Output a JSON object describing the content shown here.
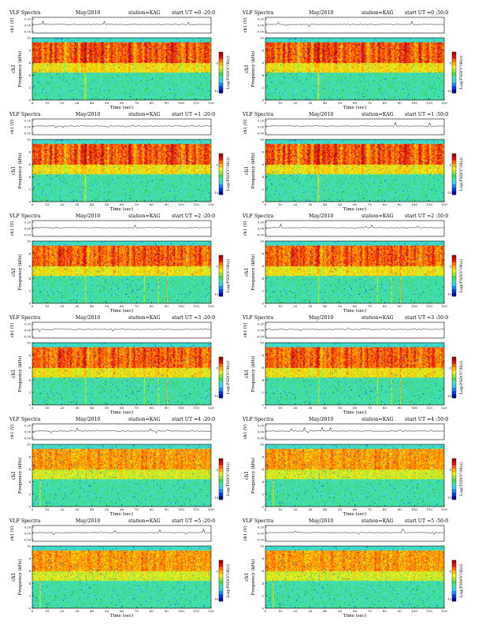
{
  "page": {
    "title": "VLF Spectra",
    "date": "May/2010",
    "station": "station=KAG"
  },
  "colors": {
    "scale": [
      "#08089a",
      "#0a3cd8",
      "#1f8be8",
      "#3ccfe6",
      "#43e0b8",
      "#46d64a",
      "#9be33a",
      "#e9f01e",
      "#ffb400",
      "#ff6a00",
      "#e01010",
      "#a8060a"
    ],
    "background": "#ffffff",
    "axis": "#000000"
  },
  "chart_data": [
    {
      "type": "heatmap",
      "title": "VLF Spectra",
      "date": "May/2010",
      "station": "station=KAG",
      "start_ut": "start  UT =0 :20:0",
      "xlabel": "Time (sec)",
      "ylabel": "Frequency (kHz)",
      "panel_ylabel": "ch1",
      "voltage_label": "ch1 (V)",
      "colorbar_label": "Log(PSD(V²/Hz))",
      "xlim": [
        0,
        120
      ],
      "ylim": [
        0,
        10
      ],
      "xticks": [
        "0",
        "10",
        "20",
        "30",
        "40",
        "50",
        "60",
        "70",
        "80",
        "90",
        "100",
        "110",
        "120"
      ],
      "yticks": [
        "0",
        "2",
        "4",
        "6",
        "8",
        "10"
      ],
      "voltage_ticks": [
        "0.20",
        "0.00",
        "-0.50"
      ],
      "colorbar_ticks": [
        "-5",
        "-10"
      ]
    },
    {
      "type": "heatmap",
      "title": "VLF Spectra",
      "date": "May/2010",
      "station": "station=KAG",
      "start_ut": "start  UT =0 :50:0",
      "xlabel": "Time (sec)",
      "ylabel": "Frequency (kHz)",
      "panel_ylabel": "ch1",
      "voltage_label": "ch1 (V)",
      "colorbar_label": "Log(PSD(V²/Hz))",
      "xlim": [
        0,
        120
      ],
      "ylim": [
        0,
        10
      ],
      "xticks": [
        "0",
        "10",
        "20",
        "30",
        "40",
        "50",
        "60",
        "70",
        "80",
        "90",
        "100",
        "110",
        "120"
      ],
      "yticks": [
        "0",
        "2",
        "4",
        "6",
        "8",
        "10"
      ],
      "voltage_ticks": [
        "0.20",
        "0.00",
        "-0.50"
      ],
      "colorbar_ticks": [
        "-5",
        "-10"
      ]
    },
    {
      "type": "heatmap",
      "title": "VLF Spectra",
      "date": "May/2010",
      "station": "station=KAG",
      "start_ut": "start  UT =1 :20:0",
      "xlabel": "Time (sec)",
      "ylabel": "Frequency (kHz)",
      "panel_ylabel": "ch1",
      "voltage_label": "ch1 (V)",
      "colorbar_label": "Log(PSD(V²/Hz))",
      "xlim": [
        0,
        120
      ],
      "ylim": [
        0,
        10
      ],
      "xticks": [
        "0",
        "10",
        "20",
        "30",
        "40",
        "50",
        "60",
        "70",
        "80",
        "90",
        "100",
        "110",
        "120"
      ],
      "yticks": [
        "0",
        "2",
        "4",
        "6",
        "8",
        "10"
      ],
      "voltage_ticks": [
        "0.20",
        "0.00",
        "-0.50"
      ],
      "colorbar_ticks": [
        "-5",
        "-10"
      ]
    },
    {
      "type": "heatmap",
      "title": "VLF Spectra",
      "date": "May/2010",
      "station": "station=KAG",
      "start_ut": "start  UT =1 :50:0",
      "xlabel": "Time (sec)",
      "ylabel": "Frequency (kHz)",
      "panel_ylabel": "ch1",
      "voltage_label": "ch1 (V)",
      "colorbar_label": "Log(PSD(V²/Hz))",
      "xlim": [
        0,
        120
      ],
      "ylim": [
        0,
        10
      ],
      "xticks": [
        "0",
        "10",
        "20",
        "30",
        "40",
        "50",
        "60",
        "70",
        "80",
        "90",
        "100",
        "110",
        "120"
      ],
      "yticks": [
        "0",
        "2",
        "4",
        "6",
        "8",
        "10"
      ],
      "voltage_ticks": [
        "0.20",
        "0.00",
        "-0.50"
      ],
      "colorbar_ticks": [
        "-5",
        "-10"
      ]
    },
    {
      "type": "heatmap",
      "title": "VLF Spectra",
      "date": "May/2010",
      "station": "station=KAG",
      "start_ut": "start  UT =2 :20:0",
      "xlabel": "Time (sec)",
      "ylabel": "Frequency (kHz)",
      "panel_ylabel": "ch1",
      "voltage_label": "ch1 (V)",
      "colorbar_label": "Log(PSD(V²/Hz))",
      "xlim": [
        0,
        120
      ],
      "ylim": [
        0,
        10
      ],
      "xticks": [
        "0",
        "10",
        "20",
        "30",
        "40",
        "50",
        "60",
        "70",
        "80",
        "90",
        "100",
        "110",
        "120"
      ],
      "yticks": [
        "0",
        "2",
        "4",
        "6",
        "8",
        "10"
      ],
      "voltage_ticks": [
        "0.20",
        "0.00",
        "-0.50"
      ],
      "colorbar_ticks": [
        "-5",
        "-10"
      ]
    },
    {
      "type": "heatmap",
      "title": "VLF Spectra",
      "date": "May/2010",
      "station": "station=KAG",
      "start_ut": "start  UT =2 :50:0",
      "xlabel": "Time (sec)",
      "ylabel": "Frequency (kHz)",
      "panel_ylabel": "ch1",
      "voltage_label": "ch1 (V)",
      "colorbar_label": "Log(PSD(V²/Hz))",
      "xlim": [
        0,
        120
      ],
      "ylim": [
        0,
        10
      ],
      "xticks": [
        "0",
        "10",
        "20",
        "30",
        "40",
        "50",
        "60",
        "70",
        "80",
        "90",
        "100",
        "110",
        "120"
      ],
      "yticks": [
        "0",
        "2",
        "4",
        "6",
        "8",
        "10"
      ],
      "voltage_ticks": [
        "0.20",
        "0.00",
        "-0.50"
      ],
      "colorbar_ticks": [
        "-5",
        "-10"
      ]
    },
    {
      "type": "heatmap",
      "title": "VLF Spectra",
      "date": "May/2010",
      "station": "station=KAG",
      "start_ut": "start  UT =3 :20:0",
      "xlabel": "Time (sec)",
      "ylabel": "Frequency (kHz)",
      "panel_ylabel": "ch1",
      "voltage_label": "ch1 (V)",
      "colorbar_label": "Log(PSD(V²/Hz))",
      "xlim": [
        0,
        120
      ],
      "ylim": [
        0,
        10
      ],
      "xticks": [
        "0",
        "10",
        "20",
        "30",
        "40",
        "50",
        "60",
        "70",
        "80",
        "90",
        "100",
        "110",
        "120"
      ],
      "yticks": [
        "0",
        "2",
        "4",
        "6",
        "8",
        "10"
      ],
      "voltage_ticks": [
        "0.20",
        "0.00",
        "-0.50"
      ],
      "colorbar_ticks": [
        "-5",
        "-10"
      ]
    },
    {
      "type": "heatmap",
      "title": "VLF Spectra",
      "date": "May/2010",
      "station": "station=KAG",
      "start_ut": "start  UT =3 :50:0",
      "xlabel": "Time (sec)",
      "ylabel": "Frequency (kHz)",
      "panel_ylabel": "ch1",
      "voltage_label": "ch1 (V)",
      "colorbar_label": "Log(PSD(V²/Hz))",
      "xlim": [
        0,
        120
      ],
      "ylim": [
        0,
        10
      ],
      "xticks": [
        "0",
        "10",
        "20",
        "30",
        "40",
        "50",
        "60",
        "70",
        "80",
        "90",
        "100",
        "110",
        "120"
      ],
      "yticks": [
        "0",
        "2",
        "4",
        "6",
        "8",
        "10"
      ],
      "voltage_ticks": [
        "0.20",
        "0.00",
        "-0.50"
      ],
      "colorbar_ticks": [
        "-5",
        "-10"
      ]
    },
    {
      "type": "heatmap",
      "title": "VLF Spectra",
      "date": "May/2010",
      "station": "station=KAG",
      "start_ut": "start  UT =4 :20:0",
      "xlabel": "Time (sec)",
      "ylabel": "Frequency (kHz)",
      "panel_ylabel": "ch1",
      "voltage_label": "ch1 (V)",
      "colorbar_label": "Log(PSD(V²/Hz))",
      "xlim": [
        0,
        120
      ],
      "ylim": [
        0,
        10
      ],
      "xticks": [
        "0",
        "10",
        "20",
        "30",
        "40",
        "50",
        "60",
        "70",
        "80",
        "90",
        "100",
        "110",
        "120"
      ],
      "yticks": [
        "0",
        "2",
        "4",
        "6",
        "8",
        "10"
      ],
      "voltage_ticks": [
        "0.20",
        "0.00",
        "-0.50"
      ],
      "colorbar_ticks": [
        "-5",
        "-10"
      ]
    },
    {
      "type": "heatmap",
      "title": "VLF Spectra",
      "date": "May/2010",
      "station": "station=KAG",
      "start_ut": "start  UT =4 :50:0",
      "xlabel": "Time (sec)",
      "ylabel": "Frequency (kHz)",
      "panel_ylabel": "ch1",
      "voltage_label": "ch1 (V)",
      "colorbar_label": "Log(PSD(V²/Hz))",
      "xlim": [
        0,
        120
      ],
      "ylim": [
        0,
        10
      ],
      "xticks": [
        "0",
        "10",
        "20",
        "30",
        "40",
        "50",
        "60",
        "70",
        "80",
        "90",
        "100",
        "110",
        "120"
      ],
      "yticks": [
        "0",
        "2",
        "4",
        "6",
        "8",
        "10"
      ],
      "voltage_ticks": [
        "0.20",
        "0.00",
        "-0.50"
      ],
      "colorbar_ticks": [
        "-5",
        "-10"
      ]
    },
    {
      "type": "heatmap",
      "title": "VLF Spectra",
      "date": "May/2010",
      "station": "station=KAG",
      "start_ut": "start  UT =5 :20:0",
      "xlabel": "Time (sec)",
      "ylabel": "Frequency (kHz)",
      "panel_ylabel": "ch1",
      "voltage_label": "ch1 (V)",
      "colorbar_label": "Log(PSD(V²/Hz))",
      "xlim": [
        0,
        120
      ],
      "ylim": [
        0,
        10
      ],
      "xticks": [
        "0",
        "10",
        "20",
        "30",
        "40",
        "50",
        "60",
        "70",
        "80",
        "90",
        "100",
        "110",
        "120"
      ],
      "yticks": [
        "0",
        "2",
        "4",
        "6",
        "8",
        "10"
      ],
      "voltage_ticks": [
        "0.20",
        "0.00",
        "-0.50"
      ],
      "colorbar_ticks": [
        "-5",
        "-10"
      ]
    },
    {
      "type": "heatmap",
      "title": "VLF Spectra",
      "date": "May/2010",
      "station": "station=KAG",
      "start_ut": "start  UT =5 :50:0",
      "xlabel": "Time (sec)",
      "ylabel": "Frequency (kHz)",
      "panel_ylabel": "ch1",
      "voltage_label": "ch1 (V)",
      "colorbar_label": "Log(PSD(V²/Hz))",
      "xlim": [
        0,
        120
      ],
      "ylim": [
        0,
        10
      ],
      "xticks": [
        "0",
        "10",
        "20",
        "30",
        "40",
        "50",
        "60",
        "70",
        "80",
        "90",
        "100",
        "110",
        "120"
      ],
      "yticks": [
        "0",
        "2",
        "4",
        "6",
        "8",
        "10"
      ],
      "voltage_ticks": [
        "0.20",
        "0.00",
        "-0.50"
      ],
      "colorbar_ticks": [
        "-5",
        "-10"
      ]
    }
  ]
}
